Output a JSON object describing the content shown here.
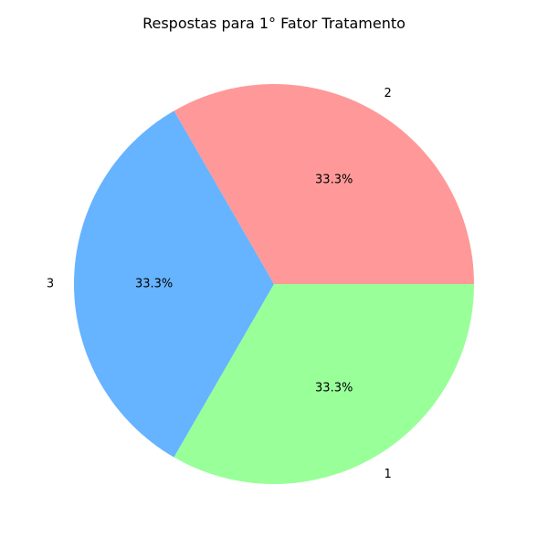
{
  "chart_data": {
    "type": "pie",
    "title": "Respostas para 1° Fator Tratamento",
    "slices": [
      {
        "label": "2",
        "value": 1,
        "percent_label": "33.3%",
        "color": "#ff9999"
      },
      {
        "label": "3",
        "value": 1,
        "percent_label": "33.3%",
        "color": "#66b3ff"
      },
      {
        "label": "1",
        "value": 1,
        "percent_label": "33.3%",
        "color": "#99ff99"
      }
    ],
    "start_angle_deg": 0,
    "direction": "counterclockwise"
  }
}
